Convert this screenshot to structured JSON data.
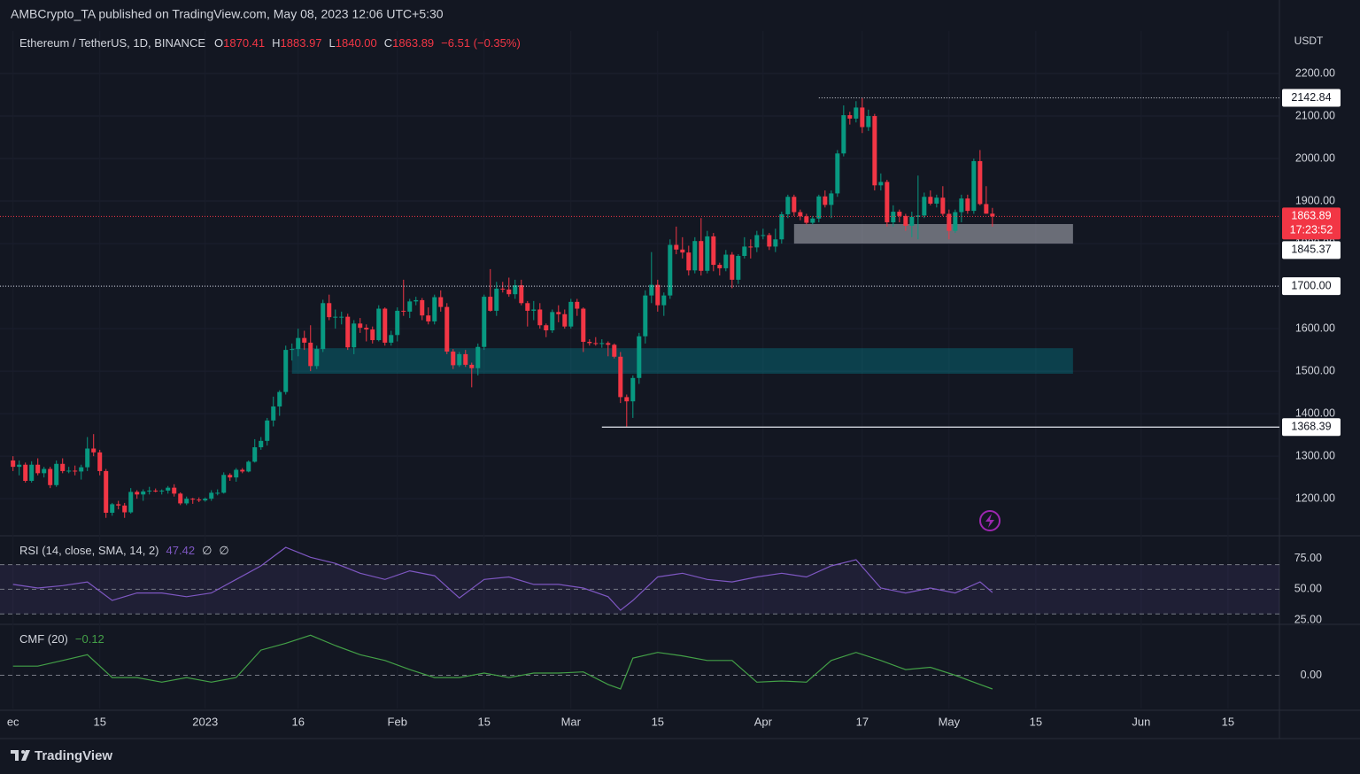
{
  "header": "AMBCrypto_TA published on TradingView.com, May 08, 2023 12:06 UTC+5:30",
  "footer": "TradingView",
  "chart_data": [
    {
      "type": "candlestick",
      "title": "Ethereum / TetherUS, 1D, BINANCE",
      "unit": "USDT",
      "last": {
        "labels": [
          "O",
          "H",
          "L",
          "C"
        ],
        "values": [
          1870.41,
          1883.97,
          1840,
          1863.89
        ],
        "value_labels": [
          "1870.41",
          "1883.97",
          "1840.00",
          "1863.89"
        ],
        "change": "−6.51 (−0.35%)"
      },
      "up_color": "#089981",
      "down_color": "#f23645",
      "grid": true,
      "xlim": [
        -2.1,
        204.3
      ],
      "ylim": [
        1117,
        2300
      ],
      "yticks": [
        {
          "value": 1200,
          "label": "1200.00"
        },
        {
          "value": 1300,
          "label": "1300.00"
        },
        {
          "value": 1400,
          "label": "1400.00"
        },
        {
          "value": 1500,
          "label": "1500.00"
        },
        {
          "value": 1600,
          "label": "1600.00"
        },
        {
          "value": 1700,
          "label": "1700.00"
        },
        {
          "value": 1800,
          "label": "1800.00"
        },
        {
          "value": 1900,
          "label": "1900.00"
        },
        {
          "value": 2000,
          "label": "2000.00"
        },
        {
          "value": 2100,
          "label": "2100.00"
        },
        {
          "value": 2200,
          "label": "2200.00"
        }
      ],
      "xticks": [
        {
          "value": 0,
          "label": "ec"
        },
        {
          "value": 14,
          "label": "15"
        },
        {
          "value": 31,
          "label": "2023"
        },
        {
          "value": 46,
          "label": "16"
        },
        {
          "value": 62,
          "label": "Feb"
        },
        {
          "value": 76,
          "label": "15"
        },
        {
          "value": 90,
          "label": "Mar"
        },
        {
          "value": 104,
          "label": "15"
        },
        {
          "value": 121,
          "label": "Apr"
        },
        {
          "value": 137,
          "label": "17"
        },
        {
          "value": 151,
          "label": "May"
        },
        {
          "value": 165,
          "label": "15"
        },
        {
          "value": 182,
          "label": "Jun"
        },
        {
          "value": 196,
          "label": "15"
        }
      ],
      "open": [
        1290,
        1275,
        1280,
        1242,
        1280,
        1260,
        1270,
        1232,
        1282,
        1265,
        1266,
        1264,
        1274,
        1318,
        1309,
        1265,
        1167,
        1187,
        1184,
        1168,
        1216,
        1210,
        1217,
        1219,
        1218,
        1219,
        1226,
        1212,
        1189,
        1200,
        1198,
        1196,
        1200,
        1214,
        1214,
        1256,
        1250,
        1268,
        1264,
        1287,
        1321,
        1336,
        1384,
        1417,
        1451,
        1550,
        1552,
        1578,
        1567,
        1512,
        1552,
        1660,
        1627,
        1628,
        1628,
        1556,
        1612,
        1602,
        1598,
        1573,
        1647,
        1567,
        1585,
        1642,
        1640,
        1664,
        1667,
        1631,
        1617,
        1674,
        1651,
        1546,
        1514,
        1540,
        1515,
        1507,
        1557,
        1675,
        1642,
        1694,
        1692,
        1681,
        1702,
        1660,
        1642,
        1645,
        1608,
        1596,
        1639,
        1634,
        1605,
        1663,
        1647,
        1569,
        1566,
        1564,
        1566,
        1562,
        1534,
        1439,
        1429,
        1484,
        1582,
        1678,
        1703,
        1655,
        1678,
        1797,
        1786,
        1779,
        1737,
        1806,
        1736,
        1817,
        1750,
        1742,
        1774,
        1715,
        1771,
        1793,
        1791,
        1820,
        1820,
        1793,
        1810,
        1869,
        1910,
        1874,
        1864,
        1849,
        1859,
        1911,
        1891,
        1918,
        2012,
        2102,
        2094,
        2120,
        2074,
        2100,
        1937,
        1945,
        1850,
        1875,
        1865,
        1842,
        1863,
        1866,
        1910,
        1894,
        1908,
        1870,
        1830,
        1874,
        1906,
        1877,
        1994,
        1893,
        1870.41
      ],
      "high": [
        1300,
        1290,
        1285,
        1288,
        1295,
        1275,
        1275,
        1290,
        1295,
        1275,
        1278,
        1280,
        1345,
        1352,
        1315,
        1270,
        1190,
        1195,
        1190,
        1225,
        1220,
        1222,
        1228,
        1224,
        1222,
        1230,
        1234,
        1215,
        1205,
        1202,
        1203,
        1203,
        1220,
        1222,
        1262,
        1260,
        1272,
        1272,
        1290,
        1340,
        1345,
        1390,
        1440,
        1455,
        1560,
        1565,
        1600,
        1595,
        1608,
        1560,
        1668,
        1680,
        1645,
        1640,
        1635,
        1620,
        1625,
        1610,
        1605,
        1655,
        1650,
        1595,
        1650,
        1715,
        1670,
        1675,
        1672,
        1650,
        1680,
        1690,
        1660,
        1552,
        1545,
        1550,
        1520,
        1565,
        1680,
        1740,
        1710,
        1710,
        1720,
        1715,
        1715,
        1665,
        1665,
        1660,
        1612,
        1645,
        1655,
        1645,
        1670,
        1670,
        1650,
        1575,
        1580,
        1575,
        1570,
        1565,
        1545,
        1445,
        1490,
        1590,
        1690,
        1780,
        1715,
        1685,
        1810,
        1840,
        1815,
        1795,
        1815,
        1860,
        1830,
        1825,
        1755,
        1785,
        1780,
        1775,
        1815,
        1810,
        1830,
        1835,
        1825,
        1835,
        1875,
        1915,
        1915,
        1880,
        1870,
        1865,
        1915,
        1925,
        1925,
        2020,
        2125,
        2110,
        2135,
        2142.84,
        2115,
        2105,
        1965,
        1950,
        1890,
        1880,
        1870,
        1875,
        1960,
        1920,
        1925,
        1915,
        1935,
        1880,
        1880,
        1915,
        1915,
        2000,
        2020,
        1935,
        1883.97
      ],
      "low": [
        1265,
        1255,
        1238,
        1238,
        1255,
        1250,
        1225,
        1228,
        1260,
        1260,
        1255,
        1245,
        1265,
        1300,
        1255,
        1155,
        1160,
        1175,
        1155,
        1165,
        1200,
        1195,
        1210,
        1215,
        1210,
        1212,
        1205,
        1185,
        1185,
        1188,
        1192,
        1193,
        1195,
        1208,
        1212,
        1242,
        1240,
        1260,
        1262,
        1285,
        1315,
        1325,
        1370,
        1395,
        1445,
        1525,
        1535,
        1550,
        1500,
        1505,
        1545,
        1620,
        1600,
        1610,
        1550,
        1540,
        1590,
        1570,
        1565,
        1570,
        1560,
        1560,
        1570,
        1630,
        1625,
        1655,
        1620,
        1610,
        1610,
        1640,
        1540,
        1505,
        1510,
        1510,
        1462,
        1490,
        1550,
        1640,
        1630,
        1685,
        1675,
        1670,
        1655,
        1605,
        1620,
        1600,
        1580,
        1590,
        1615,
        1600,
        1600,
        1630,
        1545,
        1560,
        1560,
        1555,
        1535,
        1530,
        1425,
        1368.39,
        1390,
        1470,
        1565,
        1660,
        1640,
        1630,
        1670,
        1775,
        1765,
        1725,
        1730,
        1725,
        1730,
        1735,
        1725,
        1735,
        1695,
        1705,
        1765,
        1765,
        1780,
        1810,
        1785,
        1780,
        1800,
        1860,
        1865,
        1855,
        1845,
        1845,
        1850,
        1885,
        1860,
        1910,
        2005,
        2080,
        2085,
        2060,
        2065,
        1925,
        1925,
        1840,
        1840,
        1850,
        1830,
        1815,
        1810,
        1860,
        1890,
        1885,
        1865,
        1810,
        1825,
        1850,
        1870,
        1870,
        1890,
        1870,
        1840
      ],
      "close": [
        1275,
        1280,
        1242,
        1280,
        1260,
        1270,
        1232,
        1282,
        1265,
        1266,
        1264,
        1274,
        1318,
        1309,
        1265,
        1167,
        1187,
        1184,
        1168,
        1216,
        1210,
        1217,
        1219,
        1218,
        1219,
        1226,
        1212,
        1189,
        1200,
        1198,
        1196,
        1200,
        1214,
        1214,
        1256,
        1250,
        1268,
        1264,
        1287,
        1321,
        1336,
        1384,
        1417,
        1451,
        1550,
        1552,
        1578,
        1567,
        1512,
        1552,
        1660,
        1627,
        1628,
        1628,
        1556,
        1612,
        1602,
        1598,
        1573,
        1647,
        1567,
        1585,
        1642,
        1640,
        1664,
        1667,
        1631,
        1617,
        1674,
        1651,
        1546,
        1514,
        1540,
        1515,
        1507,
        1557,
        1675,
        1642,
        1694,
        1692,
        1681,
        1702,
        1660,
        1642,
        1645,
        1608,
        1596,
        1639,
        1634,
        1605,
        1663,
        1647,
        1569,
        1566,
        1564,
        1566,
        1562,
        1534,
        1439,
        1429,
        1484,
        1582,
        1678,
        1703,
        1655,
        1678,
        1797,
        1786,
        1779,
        1737,
        1806,
        1736,
        1817,
        1750,
        1742,
        1774,
        1715,
        1771,
        1793,
        1791,
        1820,
        1820,
        1793,
        1810,
        1869,
        1910,
        1874,
        1864,
        1849,
        1859,
        1911,
        1891,
        1918,
        2012,
        2102,
        2094,
        2120,
        2074,
        2100,
        1937,
        1945,
        1850,
        1875,
        1865,
        1842,
        1863,
        1866,
        1910,
        1894,
        1908,
        1870,
        1830,
        1874,
        1906,
        1877,
        1994,
        1893,
        1870.41,
        1863.89
      ],
      "zones": [
        {
          "from": 1800,
          "to": 1846,
          "start": 126,
          "end": 171,
          "color": "rgba(178,181,190,0.55)"
        },
        {
          "from": 1494,
          "to": 1554,
          "start": 45,
          "end": 171,
          "color": "rgba(0,150,165,0.33)"
        }
      ],
      "levels": [
        {
          "value": 2142.84,
          "label": "2142.84",
          "style": "dotted",
          "start": 130
        },
        {
          "value": 1863.89,
          "label": "1863.89",
          "style": "dotted",
          "start": -2.1,
          "color": "#f23645",
          "countdown": "17:23:52"
        },
        {
          "value": 1845.37,
          "label": "1845.37",
          "style": "none"
        },
        {
          "value": 1700,
          "label": "1700.00",
          "style": "dotted",
          "start": -2.1
        },
        {
          "value": 1368.39,
          "label": "1368.39",
          "style": "solid",
          "start": 95
        }
      ]
    },
    {
      "type": "line",
      "title": "RSI (14, close, SMA, 14, 2)",
      "last_value": 47.42,
      "extra": [
        "∅",
        "∅"
      ],
      "color": "#7e57c2",
      "ylim": [
        23,
        92
      ],
      "yticks": [
        {
          "value": 25,
          "label": "25.00"
        },
        {
          "value": 50,
          "label": "50.00"
        },
        {
          "value": 75,
          "label": "75.00"
        }
      ],
      "band": [
        30,
        70
      ],
      "levels": [
        30,
        50,
        70
      ],
      "x": [
        0,
        4,
        8,
        12,
        16,
        20,
        24,
        28,
        32,
        36,
        40,
        44,
        48,
        52,
        56,
        60,
        64,
        68,
        72,
        76,
        80,
        84,
        88,
        92,
        96,
        98,
        100,
        104,
        108,
        112,
        116,
        120,
        124,
        128,
        132,
        136,
        140,
        144,
        148,
        152,
        156,
        158
      ],
      "values": [
        54,
        51,
        53,
        56,
        41,
        47,
        47,
        44,
        47,
        58,
        69,
        84,
        76,
        71,
        63,
        58,
        65,
        61,
        43,
        58,
        60,
        54,
        54,
        51,
        44,
        33,
        41,
        60,
        63,
        58,
        56,
        60,
        63,
        60,
        69,
        74,
        51,
        47,
        51,
        47,
        56,
        47.42
      ]
    },
    {
      "type": "line",
      "title": "CMF (20)",
      "last_value": {
        "value": -0.12,
        "label": "−0.12"
      },
      "color": "#43a047",
      "ylim": [
        -0.29,
        0.43
      ],
      "yticks": [
        {
          "value": 0,
          "label": "0.00"
        }
      ],
      "levels": [
        0
      ],
      "x": [
        0,
        4,
        8,
        12,
        16,
        20,
        24,
        28,
        32,
        36,
        40,
        44,
        48,
        52,
        56,
        60,
        64,
        68,
        72,
        76,
        80,
        84,
        88,
        92,
        96,
        98,
        100,
        104,
        108,
        112,
        116,
        120,
        124,
        128,
        132,
        136,
        140,
        144,
        148,
        152,
        156,
        158
      ],
      "values": [
        0.08,
        0.08,
        0.13,
        0.18,
        -0.02,
        -0.02,
        -0.06,
        -0.02,
        -0.06,
        -0.02,
        0.22,
        0.28,
        0.35,
        0.26,
        0.18,
        0.13,
        0.05,
        -0.02,
        -0.02,
        0.02,
        -0.02,
        0.02,
        0.02,
        0.03,
        -0.08,
        -0.12,
        0.15,
        0.2,
        0.17,
        0.13,
        0.13,
        -0.06,
        -0.05,
        -0.06,
        0.13,
        0.2,
        0.13,
        0.05,
        0.07,
        0,
        -0.08,
        -0.12
      ]
    }
  ]
}
